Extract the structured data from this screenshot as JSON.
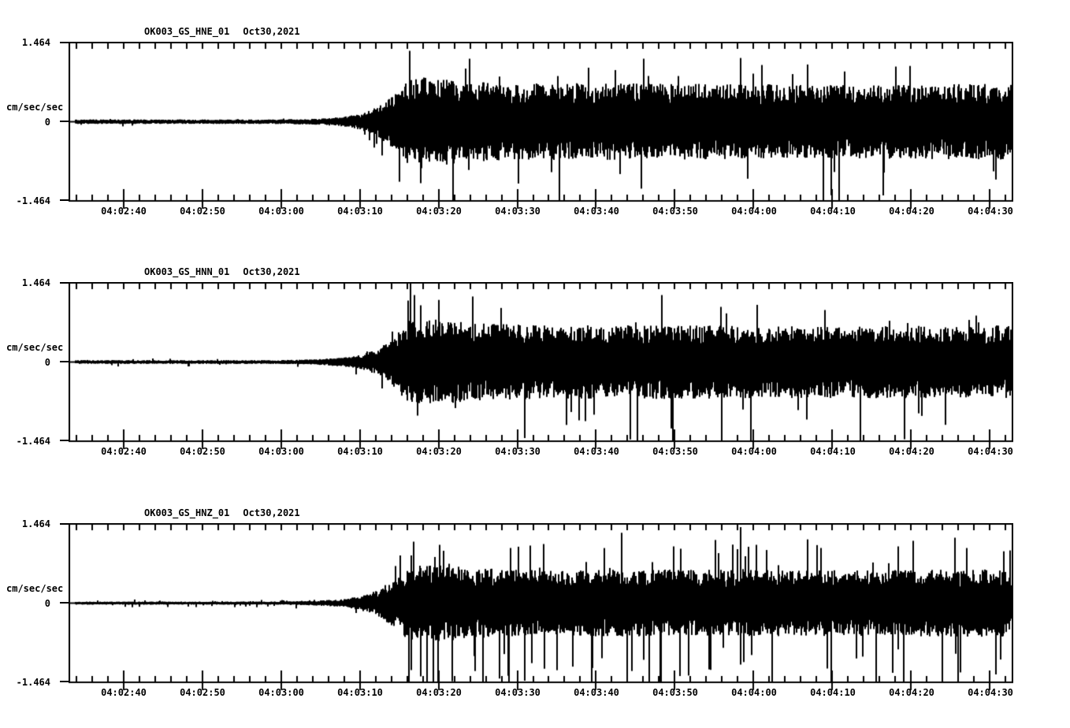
{
  "page": {
    "background": "#ffffff",
    "ink": "#000000"
  },
  "chart_data": [
    {
      "type": "line",
      "panel": "top",
      "title_station": "OK003_GS_HNE_01",
      "title_date": "Oct30,2021",
      "ylabel": "cm/sec/sec",
      "ylim": [
        -1.464,
        1.464
      ],
      "ytick_labels": [
        "1.464",
        "0",
        "-1.464"
      ],
      "xtick_labels": [
        "04:02:40",
        "04:02:50",
        "04:03:00",
        "04:03:10",
        "04:03:20",
        "04:03:30",
        "04:03:40",
        "04:03:50",
        "04:04:00",
        "04:04:10",
        "04:04:20",
        "04:04:30"
      ],
      "x_window": {
        "start": "04:02:33",
        "end": "04:04:33",
        "duration_s": 120,
        "first_minor_offset_s": 1,
        "minor_tick_s": 2,
        "first_major_offset_s": 7,
        "major_tick_s": 10
      },
      "trace_start_s": 0.8,
      "seed": 41,
      "spike_prob": 0.05,
      "spike_gain": 1.8,
      "envelope": [
        [
          0,
          0.022
        ],
        [
          26,
          0.022
        ],
        [
          31,
          0.028
        ],
        [
          35,
          0.05
        ],
        [
          37,
          0.08
        ],
        [
          39,
          0.14
        ],
        [
          41,
          0.26
        ],
        [
          43,
          0.42
        ],
        [
          46,
          0.44
        ],
        [
          50,
          0.4
        ],
        [
          56,
          0.37
        ],
        [
          65,
          0.38
        ],
        [
          80,
          0.37
        ],
        [
          100,
          0.36
        ],
        [
          120,
          0.37
        ]
      ],
      "accents": [
        [
          43.2,
          0.9
        ],
        [
          44.6,
          -0.78
        ],
        [
          50.8,
          0.8
        ],
        [
          61.3,
          -0.64
        ],
        [
          73.0,
          0.8
        ],
        [
          88.0,
          0.72
        ],
        [
          105.0,
          0.7
        ]
      ]
    },
    {
      "type": "line",
      "panel": "middle",
      "title_station": "OK003_GS_HNN_01",
      "title_date": "Oct30,2021",
      "ylabel": "cm/sec/sec",
      "ylim": [
        -1.464,
        1.464
      ],
      "ytick_labels": [
        "1.464",
        "0",
        "-1.464"
      ],
      "xtick_labels": [
        "04:02:40",
        "04:02:50",
        "04:03:00",
        "04:03:10",
        "04:03:20",
        "04:03:30",
        "04:03:40",
        "04:03:50",
        "04:04:00",
        "04:04:10",
        "04:04:20",
        "04:04:30"
      ],
      "x_window": {
        "start": "04:02:33",
        "end": "04:04:33",
        "duration_s": 120,
        "first_minor_offset_s": 1,
        "minor_tick_s": 2,
        "first_major_offset_s": 7,
        "major_tick_s": 10
      },
      "trace_start_s": 0.8,
      "seed": 137,
      "spike_prob": 0.05,
      "spike_gain": 1.8,
      "envelope": [
        [
          0,
          0.018
        ],
        [
          26,
          0.018
        ],
        [
          31,
          0.025
        ],
        [
          35,
          0.045
        ],
        [
          37,
          0.07
        ],
        [
          39,
          0.12
        ],
        [
          41,
          0.22
        ],
        [
          43,
          0.4
        ],
        [
          46,
          0.42
        ],
        [
          52,
          0.38
        ],
        [
          60,
          0.36
        ],
        [
          75,
          0.36
        ],
        [
          95,
          0.35
        ],
        [
          120,
          0.36
        ]
      ],
      "accents": [
        [
          43.0,
          0.78
        ],
        [
          43.8,
          0.85
        ],
        [
          44.2,
          -0.68
        ],
        [
          44.6,
          0.72
        ],
        [
          64.8,
          -0.74
        ],
        [
          82.8,
          0.7
        ],
        [
          96.0,
          0.66
        ]
      ]
    },
    {
      "type": "line",
      "panel": "bottom",
      "title_station": "OK003_GS_HNZ_01",
      "title_date": "Oct30,2021",
      "ylabel": "cm/sec/sec",
      "ylim": [
        -1.464,
        1.464
      ],
      "ytick_labels": [
        "1.464",
        "0",
        "-1.464"
      ],
      "xtick_labels": [
        "04:02:40",
        "04:02:50",
        "04:03:00",
        "04:03:10",
        "04:03:20",
        "04:03:30",
        "04:03:40",
        "04:03:50",
        "04:04:00",
        "04:04:10",
        "04:04:20",
        "04:04:30"
      ],
      "x_window": {
        "start": "04:02:33",
        "end": "04:04:33",
        "duration_s": 120,
        "first_minor_offset_s": 1,
        "minor_tick_s": 2,
        "first_major_offset_s": 7,
        "major_tick_s": 10
      },
      "trace_start_s": 0.8,
      "seed": 263,
      "spike_prob": 0.09,
      "spike_gain": 2.0,
      "envelope": [
        [
          0,
          0.015
        ],
        [
          26,
          0.015
        ],
        [
          31,
          0.022
        ],
        [
          35,
          0.04
        ],
        [
          37,
          0.07
        ],
        [
          39,
          0.12
        ],
        [
          41,
          0.22
        ],
        [
          43,
          0.36
        ],
        [
          46,
          0.38
        ],
        [
          52,
          0.34
        ],
        [
          60,
          0.32
        ],
        [
          75,
          0.33
        ],
        [
          95,
          0.32
        ],
        [
          120,
          0.33
        ]
      ],
      "accents": [
        [
          43.4,
          -0.85
        ],
        [
          43.7,
          0.78
        ],
        [
          44.6,
          -0.93
        ],
        [
          47.0,
          0.74
        ],
        [
          56.0,
          0.7
        ],
        [
          60.3,
          0.75
        ],
        [
          76.8,
          0.72
        ],
        [
          85.3,
          -0.78
        ],
        [
          95.5,
          0.7
        ],
        [
          105.3,
          0.72
        ]
      ]
    }
  ]
}
